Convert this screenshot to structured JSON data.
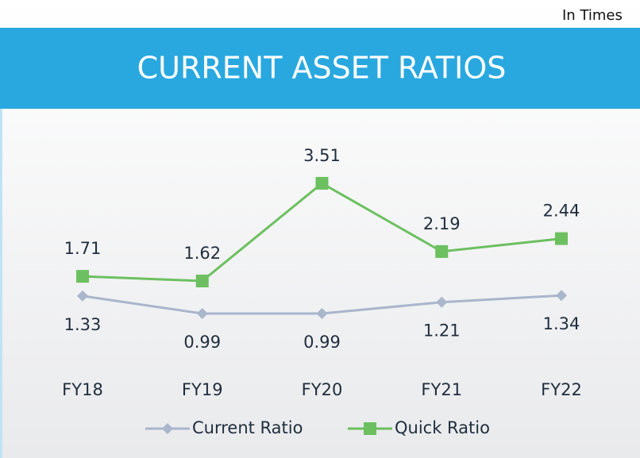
{
  "chart_data": {
    "type": "line",
    "title": "CURRENT ASSET RATIOS",
    "unit_note": "In Times",
    "categories": [
      "FY18",
      "FY19",
      "FY20",
      "FY21",
      "FY22"
    ],
    "series": [
      {
        "name": "Current Ratio",
        "color": "#a9b6cc",
        "marker": "diamond",
        "values": [
          1.33,
          0.99,
          0.99,
          1.21,
          1.34
        ]
      },
      {
        "name": "Quick Ratio",
        "color": "#6cc060",
        "marker": "square",
        "values": [
          1.71,
          1.62,
          3.51,
          2.19,
          2.44
        ]
      }
    ],
    "ylim": [
      0,
      4
    ],
    "legend": "bottom"
  }
}
